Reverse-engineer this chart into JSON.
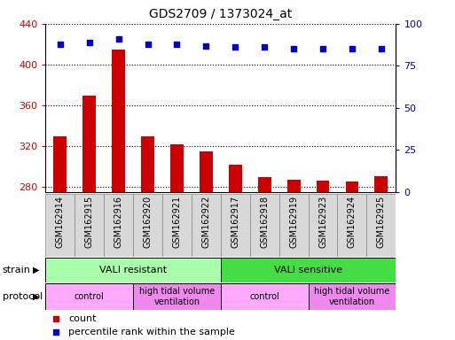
{
  "title": "GDS2709 / 1373024_at",
  "samples": [
    "GSM162914",
    "GSM162915",
    "GSM162916",
    "GSM162920",
    "GSM162921",
    "GSM162922",
    "GSM162917",
    "GSM162918",
    "GSM162919",
    "GSM162923",
    "GSM162924",
    "GSM162925"
  ],
  "counts": [
    330,
    370,
    415,
    330,
    322,
    315,
    302,
    290,
    287,
    286,
    285,
    291
  ],
  "percentile": [
    88,
    89,
    91,
    88,
    88,
    87,
    86,
    86,
    85,
    85,
    85,
    85
  ],
  "ylim_left": [
    275,
    440
  ],
  "ylim_right": [
    0,
    100
  ],
  "yticks_left": [
    280,
    320,
    360,
    400,
    440
  ],
  "yticks_right": [
    0,
    25,
    50,
    75,
    100
  ],
  "bar_color": "#cc0000",
  "dot_color": "#0000cc",
  "strain_groups": [
    {
      "label": "VALI resistant",
      "start": 0,
      "end": 6,
      "color": "#aaffaa"
    },
    {
      "label": "VALI sensitive",
      "start": 6,
      "end": 12,
      "color": "#44dd44"
    }
  ],
  "protocol_groups": [
    {
      "label": "control",
      "start": 0,
      "end": 3,
      "color": "#ffaaff"
    },
    {
      "label": "high tidal volume\nventilation",
      "start": 3,
      "end": 6,
      "color": "#ee88ee"
    },
    {
      "label": "control",
      "start": 6,
      "end": 9,
      "color": "#ffaaff"
    },
    {
      "label": "high tidal volume\nventilation",
      "start": 9,
      "end": 12,
      "color": "#ee88ee"
    }
  ],
  "legend_count_color": "#cc0000",
  "legend_pct_color": "#0000cc",
  "bg_color": "#ffffff",
  "tick_label_color_left": "#cc0000",
  "tick_label_color_right": "#0000cc",
  "xtick_bg_color": "#d8d8d8",
  "xtick_border_color": "#888888"
}
